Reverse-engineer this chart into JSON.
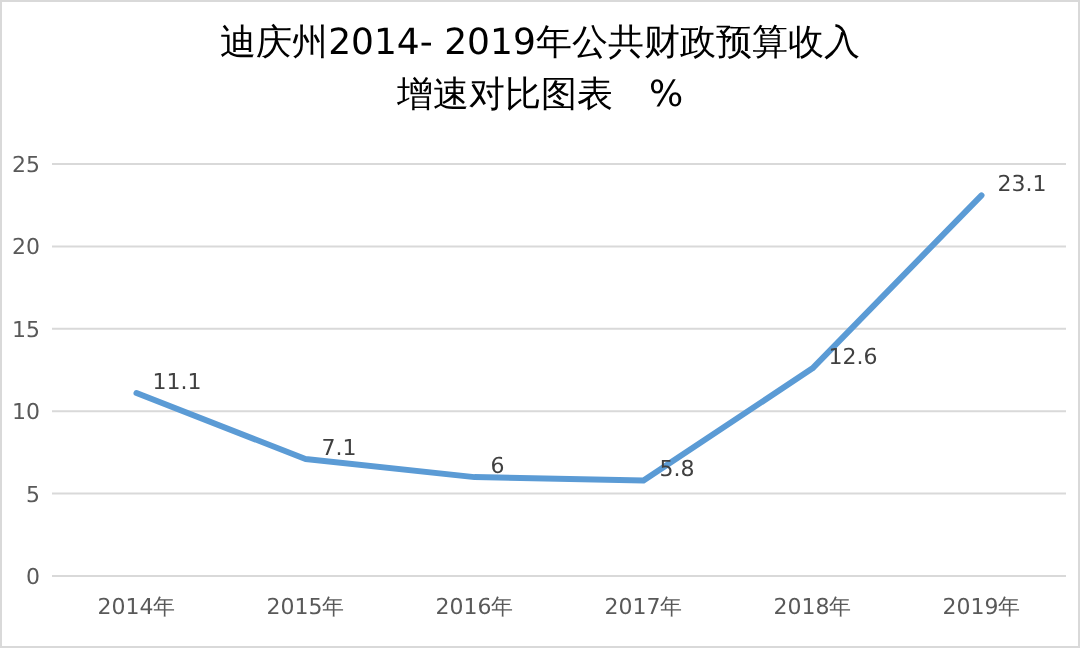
{
  "chart_data": {
    "type": "line",
    "title": "迪庆州2014- 2019年公共财政预算收入增速对比图表　%",
    "categories": [
      "2014年",
      "2015年",
      "2016年",
      "2017年",
      "2018年",
      "2019年"
    ],
    "series": [
      {
        "color": "#5b9bd5",
        "values": [
          11.1,
          7.1,
          6,
          5.8,
          12.6,
          23.1
        ]
      }
    ],
    "ylim": [
      0,
      25
    ],
    "yticks": [
      0,
      5,
      10,
      15,
      20,
      25
    ],
    "grid": "y",
    "data_labels": true
  }
}
